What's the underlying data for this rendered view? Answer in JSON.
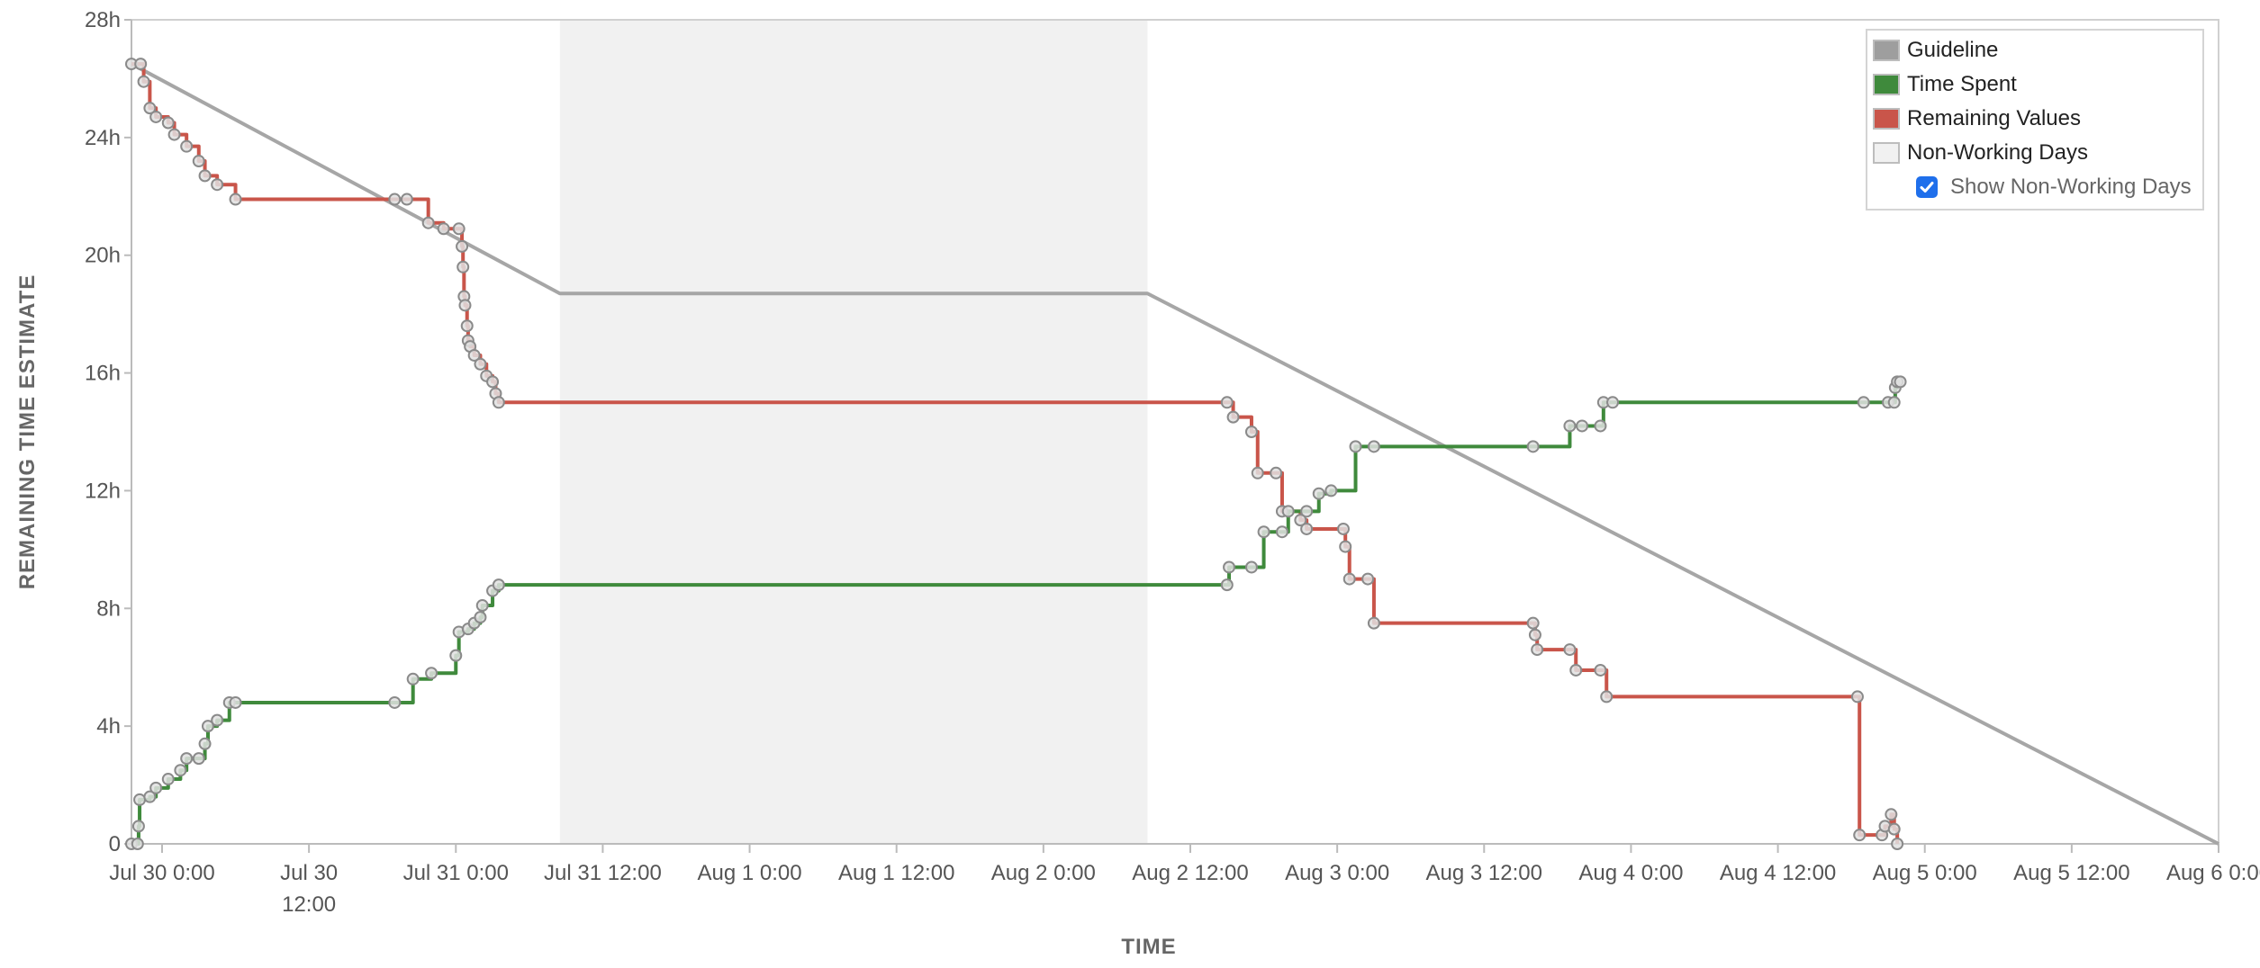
{
  "chart_data": {
    "type": "line",
    "title": "",
    "xlabel": "TIME",
    "ylabel": "REMAINING TIME ESTIMATE",
    "y_unit": "hours",
    "ylim": [
      0,
      28
    ],
    "xlim": [
      "Jul 29 21:30",
      "Aug 6 00:00"
    ],
    "y_ticks": [
      {
        "value": 0,
        "label": "0"
      },
      {
        "value": 4,
        "label": "4h"
      },
      {
        "value": 8,
        "label": "8h"
      },
      {
        "value": 12,
        "label": "12h"
      },
      {
        "value": 16,
        "label": "16h"
      },
      {
        "value": 20,
        "label": "20h"
      },
      {
        "value": 24,
        "label": "24h"
      },
      {
        "value": 28,
        "label": "28h"
      }
    ],
    "x_ticks": [
      {
        "time": "Jul 30 00:00",
        "lines": [
          "Jul 30 0:00"
        ]
      },
      {
        "time": "Jul 30 12:00",
        "lines": [
          "Jul 30",
          "12:00"
        ]
      },
      {
        "time": "Jul 31 00:00",
        "lines": [
          "Jul 31 0:00"
        ]
      },
      {
        "time": "Jul 31 12:00",
        "lines": [
          "Jul 31 12:00"
        ]
      },
      {
        "time": "Aug 1 00:00",
        "lines": [
          "Aug 1 0:00"
        ]
      },
      {
        "time": "Aug 1 12:00",
        "lines": [
          "Aug 1 12:00"
        ]
      },
      {
        "time": "Aug 2 00:00",
        "lines": [
          "Aug 2 0:00"
        ]
      },
      {
        "time": "Aug 2 12:00",
        "lines": [
          "Aug 2 12:00"
        ]
      },
      {
        "time": "Aug 3 00:00",
        "lines": [
          "Aug 3 0:00"
        ]
      },
      {
        "time": "Aug 3 12:00",
        "lines": [
          "Aug 3 12:00"
        ]
      },
      {
        "time": "Aug 4 00:00",
        "lines": [
          "Aug 4 0:00"
        ]
      },
      {
        "time": "Aug 4 12:00",
        "lines": [
          "Aug 4 12:00"
        ]
      },
      {
        "time": "Aug 5 00:00",
        "lines": [
          "Aug 5 0:00"
        ]
      },
      {
        "time": "Aug 5 12:00",
        "lines": [
          "Aug 5 12:00"
        ]
      },
      {
        "time": "Aug 6 00:00",
        "lines": [
          "Aug 6 0:00"
        ]
      }
    ],
    "non_working_days": [
      {
        "start": "Jul 31 08:30",
        "end": "Aug 2 08:30"
      }
    ],
    "series": [
      {
        "name": "Guideline",
        "color": "#a6a6a6",
        "step": false,
        "markers": false,
        "points": [
          {
            "t": "Jul 29 21:30",
            "y": 26.5
          },
          {
            "t": "Jul 31 08:30",
            "y": 18.7
          },
          {
            "t": "Aug 2 08:30",
            "y": 18.7
          },
          {
            "t": "Aug 6 00:00",
            "y": 0
          }
        ]
      },
      {
        "name": "Remaining Values",
        "color": "#c9554a",
        "step": true,
        "markers": true,
        "points": [
          {
            "t": "Jul 29 21:30",
            "y": 26.5
          },
          {
            "t": "Jul 29 22:15",
            "y": 26.5
          },
          {
            "t": "Jul 29 22:30",
            "y": 25.9
          },
          {
            "t": "Jul 29 23:00",
            "y": 25.0
          },
          {
            "t": "Jul 29 23:30",
            "y": 24.7
          },
          {
            "t": "Jul 30 00:30",
            "y": 24.5
          },
          {
            "t": "Jul 30 01:00",
            "y": 24.1
          },
          {
            "t": "Jul 30 02:00",
            "y": 23.7
          },
          {
            "t": "Jul 30 03:00",
            "y": 23.2
          },
          {
            "t": "Jul 30 03:30",
            "y": 22.7
          },
          {
            "t": "Jul 30 04:30",
            "y": 22.4
          },
          {
            "t": "Jul 30 06:00",
            "y": 21.9
          },
          {
            "t": "Jul 30 19:00",
            "y": 21.9
          },
          {
            "t": "Jul 30 20:00",
            "y": 21.9
          },
          {
            "t": "Jul 30 21:45",
            "y": 21.1
          },
          {
            "t": "Jul 30 23:00",
            "y": 20.9
          },
          {
            "t": "Jul 31 00:15",
            "y": 20.9
          },
          {
            "t": "Jul 31 00:30",
            "y": 20.3
          },
          {
            "t": "Jul 31 00:35",
            "y": 19.6
          },
          {
            "t": "Jul 31 00:40",
            "y": 18.6
          },
          {
            "t": "Jul 31 00:45",
            "y": 18.3
          },
          {
            "t": "Jul 31 00:55",
            "y": 17.6
          },
          {
            "t": "Jul 31 01:00",
            "y": 17.1
          },
          {
            "t": "Jul 31 01:10",
            "y": 16.9
          },
          {
            "t": "Jul 31 01:30",
            "y": 16.6
          },
          {
            "t": "Jul 31 02:00",
            "y": 16.3
          },
          {
            "t": "Jul 31 02:30",
            "y": 15.9
          },
          {
            "t": "Jul 31 03:00",
            "y": 15.7
          },
          {
            "t": "Jul 31 03:15",
            "y": 15.3
          },
          {
            "t": "Jul 31 03:30",
            "y": 15.0
          },
          {
            "t": "Aug 2 15:00",
            "y": 15.0
          },
          {
            "t": "Aug 2 15:30",
            "y": 14.5
          },
          {
            "t": "Aug 2 17:00",
            "y": 14.0
          },
          {
            "t": "Aug 2 17:30",
            "y": 12.6
          },
          {
            "t": "Aug 2 19:00",
            "y": 12.6
          },
          {
            "t": "Aug 2 19:30",
            "y": 11.3
          },
          {
            "t": "Aug 2 21:00",
            "y": 11.0
          },
          {
            "t": "Aug 2 21:30",
            "y": 10.7
          },
          {
            "t": "Aug 3 00:30",
            "y": 10.7
          },
          {
            "t": "Aug 3 00:40",
            "y": 10.1
          },
          {
            "t": "Aug 3 01:00",
            "y": 9.0
          },
          {
            "t": "Aug 3 02:30",
            "y": 9.0
          },
          {
            "t": "Aug 3 03:00",
            "y": 7.5
          },
          {
            "t": "Aug 3 16:00",
            "y": 7.5
          },
          {
            "t": "Aug 3 16:10",
            "y": 7.1
          },
          {
            "t": "Aug 3 16:20",
            "y": 6.6
          },
          {
            "t": "Aug 3 19:00",
            "y": 6.6
          },
          {
            "t": "Aug 3 19:30",
            "y": 5.9
          },
          {
            "t": "Aug 3 21:30",
            "y": 5.9
          },
          {
            "t": "Aug 3 22:00",
            "y": 5.0
          },
          {
            "t": "Aug 4 18:30",
            "y": 5.0
          },
          {
            "t": "Aug 4 18:40",
            "y": 0.3
          },
          {
            "t": "Aug 4 20:30",
            "y": 0.3
          },
          {
            "t": "Aug 4 20:45",
            "y": 0.6
          },
          {
            "t": "Aug 4 21:15",
            "y": 1.0
          },
          {
            "t": "Aug 4 21:30",
            "y": 0.5
          },
          {
            "t": "Aug 4 21:45",
            "y": 0.0
          }
        ]
      },
      {
        "name": "Time Spent",
        "color": "#3f8a3c",
        "step": true,
        "markers": true,
        "points": [
          {
            "t": "Jul 29 21:30",
            "y": 0.0
          },
          {
            "t": "Jul 29 22:00",
            "y": 0.0
          },
          {
            "t": "Jul 29 22:05",
            "y": 0.6
          },
          {
            "t": "Jul 29 22:10",
            "y": 1.5
          },
          {
            "t": "Jul 29 23:00",
            "y": 1.6
          },
          {
            "t": "Jul 29 23:30",
            "y": 1.9
          },
          {
            "t": "Jul 30 00:30",
            "y": 2.2
          },
          {
            "t": "Jul 30 01:30",
            "y": 2.5
          },
          {
            "t": "Jul 30 02:00",
            "y": 2.9
          },
          {
            "t": "Jul 30 03:00",
            "y": 2.9
          },
          {
            "t": "Jul 30 03:30",
            "y": 3.4
          },
          {
            "t": "Jul 30 03:45",
            "y": 4.0
          },
          {
            "t": "Jul 30 04:30",
            "y": 4.2
          },
          {
            "t": "Jul 30 05:30",
            "y": 4.8
          },
          {
            "t": "Jul 30 06:00",
            "y": 4.8
          },
          {
            "t": "Jul 30 19:00",
            "y": 4.8
          },
          {
            "t": "Jul 30 20:30",
            "y": 5.6
          },
          {
            "t": "Jul 30 22:00",
            "y": 5.8
          },
          {
            "t": "Jul 31 00:00",
            "y": 6.4
          },
          {
            "t": "Jul 31 00:15",
            "y": 7.2
          },
          {
            "t": "Jul 31 01:00",
            "y": 7.3
          },
          {
            "t": "Jul 31 01:30",
            "y": 7.5
          },
          {
            "t": "Jul 31 02:00",
            "y": 7.7
          },
          {
            "t": "Jul 31 02:10",
            "y": 8.1
          },
          {
            "t": "Jul 31 03:00",
            "y": 8.6
          },
          {
            "t": "Jul 31 03:30",
            "y": 8.8
          },
          {
            "t": "Aug 2 15:00",
            "y": 8.8
          },
          {
            "t": "Aug 2 15:10",
            "y": 9.4
          },
          {
            "t": "Aug 2 17:00",
            "y": 9.4
          },
          {
            "t": "Aug 2 18:00",
            "y": 10.6
          },
          {
            "t": "Aug 2 19:30",
            "y": 10.6
          },
          {
            "t": "Aug 2 20:00",
            "y": 11.3
          },
          {
            "t": "Aug 2 21:30",
            "y": 11.3
          },
          {
            "t": "Aug 2 22:30",
            "y": 11.9
          },
          {
            "t": "Aug 2 23:30",
            "y": 12.0
          },
          {
            "t": "Aug 3 01:30",
            "y": 13.5
          },
          {
            "t": "Aug 3 03:00",
            "y": 13.5
          },
          {
            "t": "Aug 3 16:00",
            "y": 13.5
          },
          {
            "t": "Aug 3 19:00",
            "y": 14.2
          },
          {
            "t": "Aug 3 20:00",
            "y": 14.2
          },
          {
            "t": "Aug 3 21:30",
            "y": 14.2
          },
          {
            "t": "Aug 3 21:45",
            "y": 15.0
          },
          {
            "t": "Aug 3 22:30",
            "y": 15.0
          },
          {
            "t": "Aug 4 19:00",
            "y": 15.0
          },
          {
            "t": "Aug 4 21:00",
            "y": 15.0
          },
          {
            "t": "Aug 4 21:30",
            "y": 15.0
          },
          {
            "t": "Aug 4 21:35",
            "y": 15.5
          },
          {
            "t": "Aug 4 21:45",
            "y": 15.7
          },
          {
            "t": "Aug 4 22:00",
            "y": 15.7
          }
        ]
      }
    ],
    "legend": {
      "position": "top-right",
      "items": [
        {
          "label": "Guideline",
          "color": "#9e9e9e"
        },
        {
          "label": "Time Spent",
          "color": "#3f8a3c"
        },
        {
          "label": "Remaining Values",
          "color": "#c9554a"
        },
        {
          "label": "Non-Working Days",
          "color": "#f1f1f1"
        }
      ],
      "toggle": {
        "label": "Show Non-Working Days",
        "checked": true
      }
    },
    "colors": {
      "non_working_band": "#f1f1f1",
      "axis": "#bbbbbb",
      "marker_fill": "#e0e0e0",
      "marker_stroke": "#8a8a8a"
    }
  }
}
